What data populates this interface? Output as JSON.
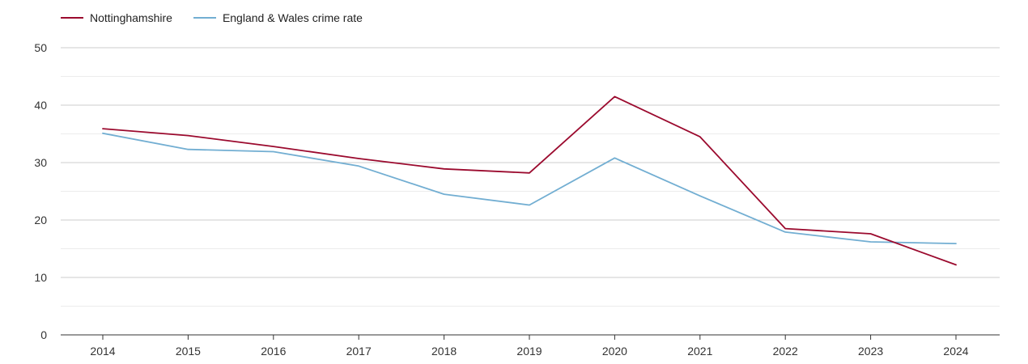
{
  "chart_data": {
    "type": "line",
    "title": "",
    "xlabel": "",
    "ylabel": "",
    "ylim": [
      0,
      50
    ],
    "yticks": [
      0,
      10,
      20,
      30,
      40,
      50
    ],
    "categories": [
      "2014",
      "2015",
      "2016",
      "2017",
      "2018",
      "2019",
      "2020",
      "2021",
      "2022",
      "2023",
      "2024"
    ],
    "series": [
      {
        "name": "Nottinghamshire",
        "color": "#9b0a2e",
        "values": [
          35.9,
          34.7,
          32.8,
          30.7,
          28.9,
          28.2,
          41.5,
          34.5,
          18.5,
          17.6,
          12.2
        ]
      },
      {
        "name": "England & Wales crime rate",
        "color": "#72aed2",
        "values": [
          35.1,
          32.3,
          31.9,
          29.4,
          24.5,
          22.6,
          30.8,
          24.2,
          17.9,
          16.2,
          15.9
        ]
      }
    ],
    "grid": true,
    "legend_position": "top-left"
  }
}
